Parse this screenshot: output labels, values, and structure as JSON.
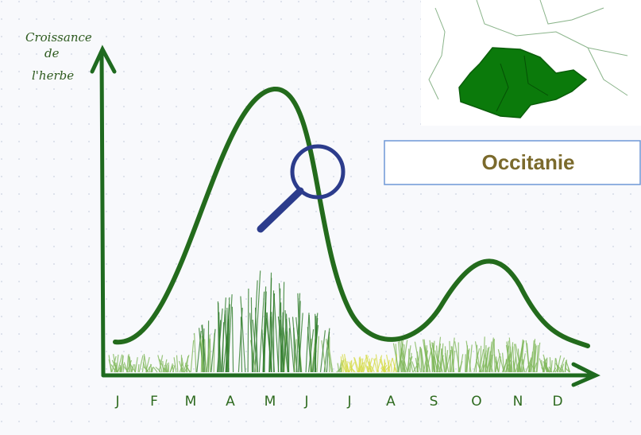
{
  "y_axis_label": {
    "line1": "Croissance",
    "line2": "de",
    "line3": "l'herbe"
  },
  "months": [
    "J",
    "F",
    "M",
    "A",
    "M",
    "J",
    "J",
    "A",
    "S",
    "O",
    "N",
    "D"
  ],
  "region": "Occitanie"
}
